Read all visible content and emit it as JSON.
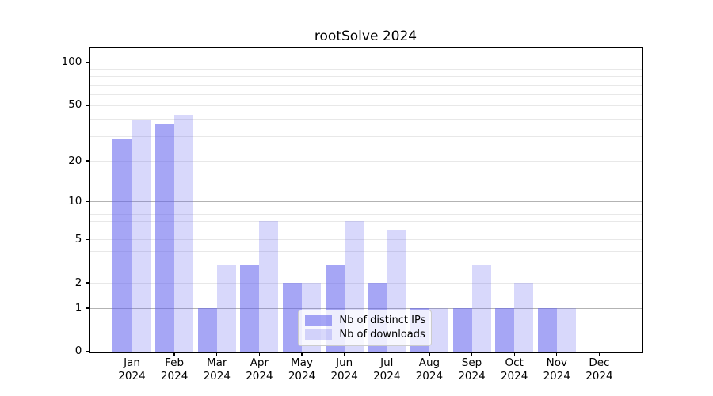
{
  "chart_data": {
    "type": "bar",
    "title": "rootSolve 2024",
    "xlabel": "",
    "ylabel": "",
    "categories": [
      "Jan",
      "Feb",
      "Mar",
      "Apr",
      "May",
      "Jun",
      "Jul",
      "Aug",
      "Sep",
      "Oct",
      "Nov",
      "Dec"
    ],
    "year_label": "2024",
    "series": [
      {
        "name": "Nb of distinct IPs",
        "values": [
          29,
          37,
          1,
          3,
          2,
          3,
          2,
          1,
          1,
          1,
          1,
          0
        ],
        "color": "#a5a5f5"
      },
      {
        "name": "Nb of downloads",
        "values": [
          39,
          43,
          3,
          7,
          2,
          7,
          6,
          1,
          3,
          2,
          1,
          0
        ],
        "color": "#d8d8fa"
      }
    ],
    "yscale": "log10(value+1)",
    "yticks": [
      0,
      1,
      2,
      5,
      10,
      20,
      50,
      100
    ],
    "ylim": [
      0,
      127.6
    ],
    "grid": {
      "on": true,
      "major": [
        1,
        10,
        100
      ],
      "minor": [
        2,
        3,
        4,
        5,
        6,
        7,
        8,
        9,
        20,
        30,
        40,
        50,
        60,
        70,
        80,
        90
      ],
      "major_color": "#b3b3b3",
      "minor_color": "#e8e8e8"
    },
    "legend_position": "lower center",
    "background": "#ffffff",
    "frame_color": "#000000"
  }
}
